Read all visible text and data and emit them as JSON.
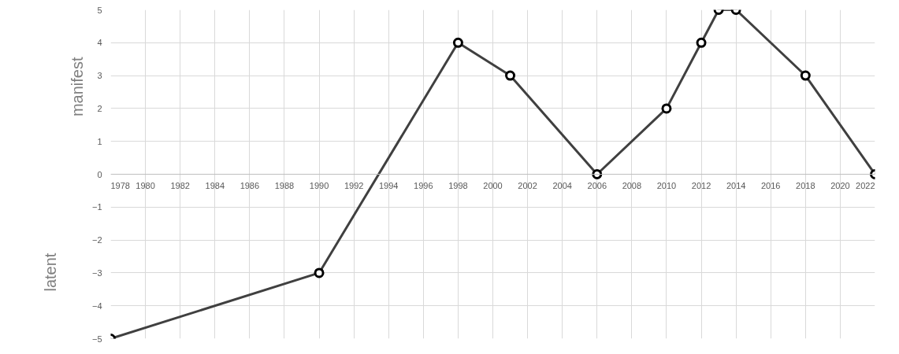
{
  "chart_data": {
    "type": "line",
    "x": [
      1978,
      1990,
      1998,
      2001,
      2006,
      2010,
      2012,
      2013,
      2014,
      2018,
      2022
    ],
    "series": [
      {
        "color": "#404040",
        "values": [
          -5,
          -3,
          4,
          3,
          0,
          2,
          4,
          5,
          5,
          3,
          0
        ]
      }
    ],
    "xlim": [
      1978,
      2022
    ],
    "ylim": [
      -5,
      5
    ],
    "xticks": [
      1978,
      1980,
      1982,
      1984,
      1986,
      1988,
      1990,
      1992,
      1994,
      1996,
      1998,
      2000,
      2002,
      2004,
      2006,
      2008,
      2010,
      2012,
      2014,
      2016,
      2018,
      2020,
      2022
    ],
    "yticks": [
      -5,
      -4,
      -3,
      -2,
      -1,
      0,
      1,
      2,
      3,
      4,
      5
    ],
    "annotations": [
      "manifest",
      "latent"
    ],
    "grid": true,
    "marker": "circle",
    "line_style": "solid"
  }
}
